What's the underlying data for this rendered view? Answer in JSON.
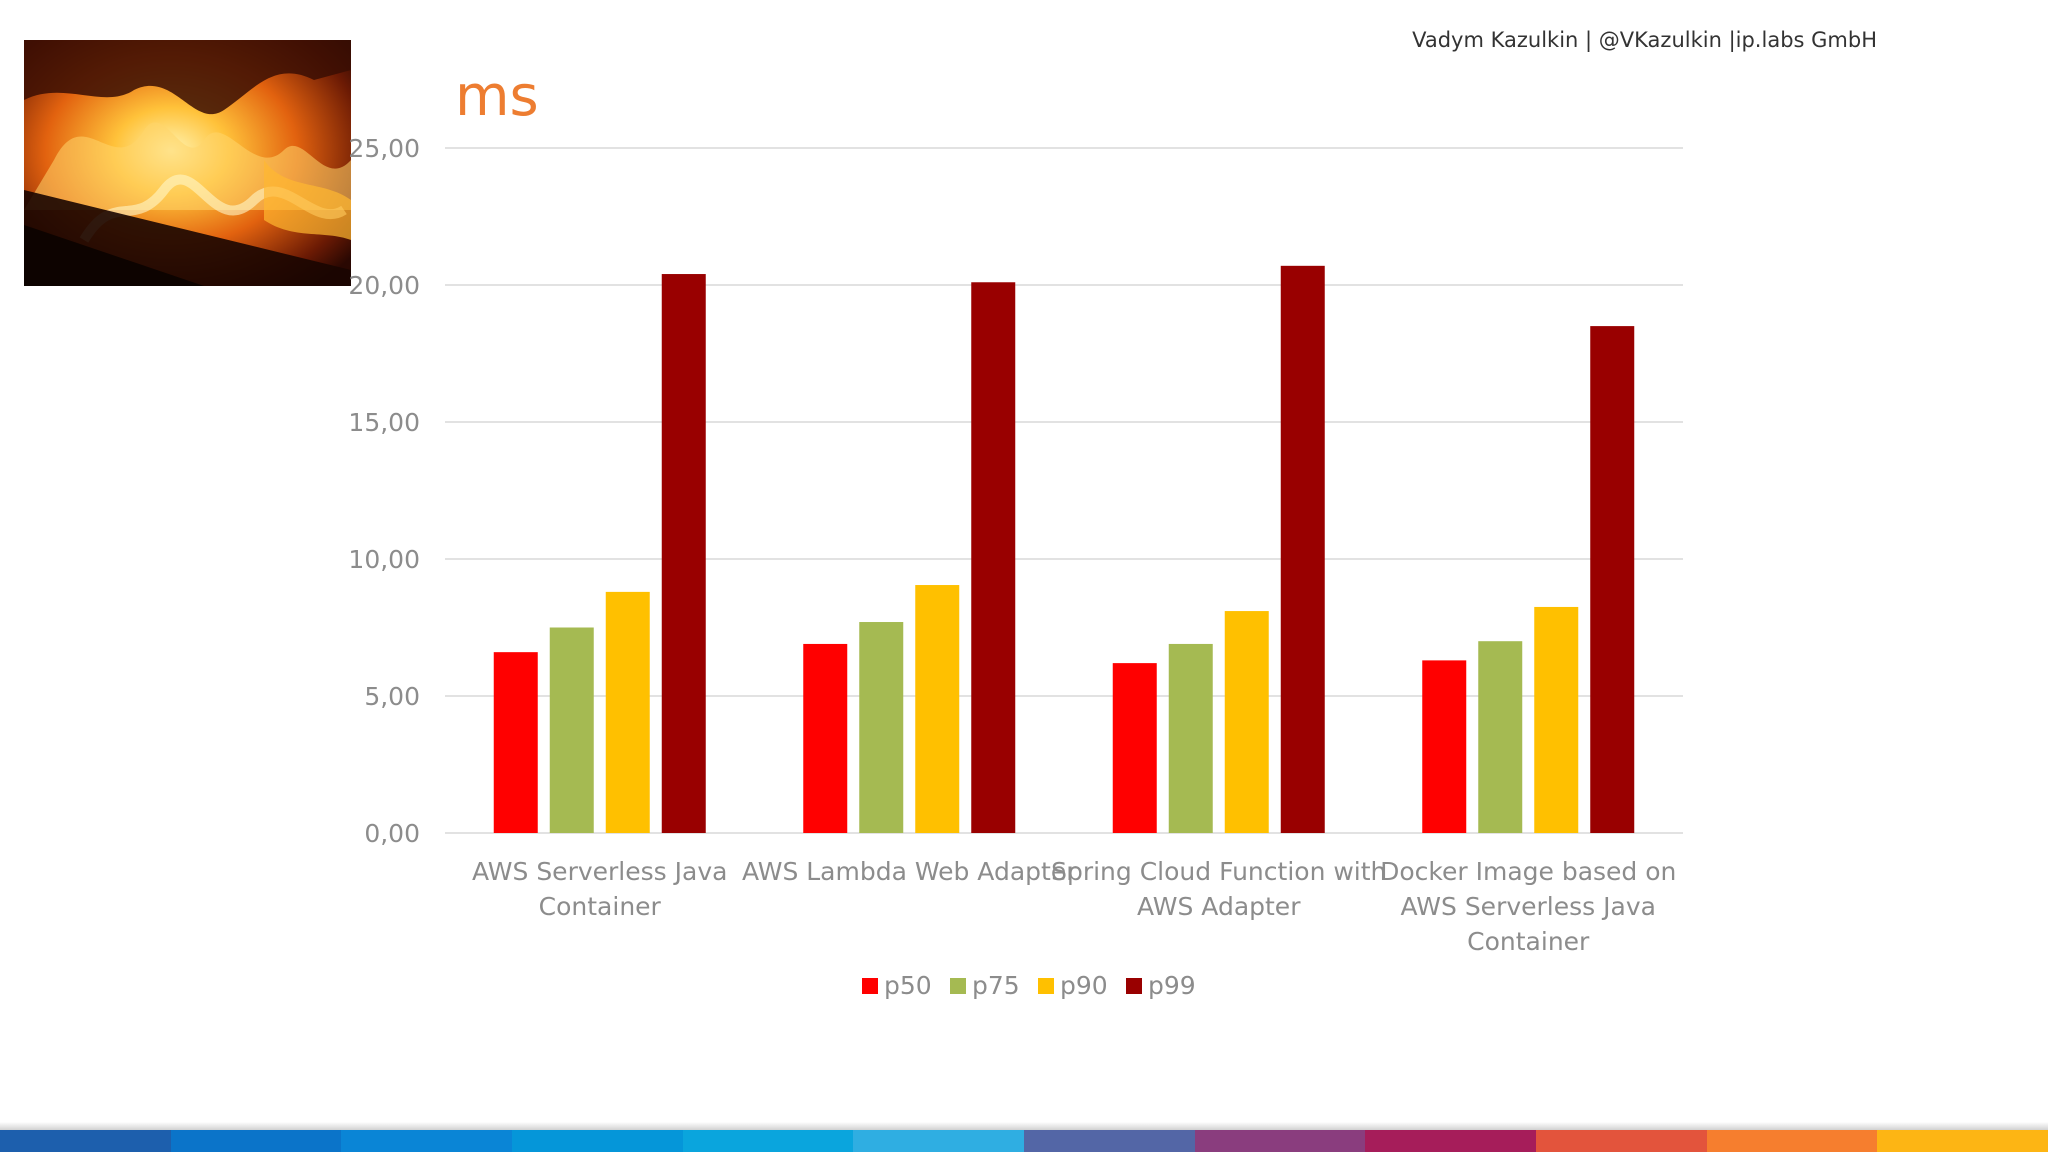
{
  "header": {
    "author_line": "Vadym Kazulkin | @VKazulkin |ip.labs GmbH"
  },
  "photo": {
    "icon": "fire-photo",
    "alt": "fire in fireplace"
  },
  "colors": {
    "title": "#ED7D31",
    "axis_text": "#8C8C8C",
    "grid": "#D9D9D9",
    "series": [
      "#FF0000",
      "#A5BA52",
      "#FFC000",
      "#990000"
    ],
    "bottom_bar": [
      "#1D5FAD",
      "#0B74C9",
      "#0A85D6",
      "#0596D9",
      "#0AA5DD",
      "#2FAEE2",
      "#5366A6",
      "#8A3D7E",
      "#A61D5A",
      "#E3543C",
      "#F67E2E",
      "#FDB514"
    ]
  },
  "chart_data": {
    "type": "bar",
    "title": "ms",
    "xlabel": "",
    "ylabel": "",
    "ylim": [
      0,
      25
    ],
    "yticks": [
      0,
      5,
      10,
      15,
      20,
      25
    ],
    "ytick_labels": [
      "0,00",
      "5,00",
      "10,00",
      "15,00",
      "20,00",
      "25,00"
    ],
    "grid": true,
    "legend_position": "bottom",
    "categories": [
      [
        "AWS Serverless Java",
        "Container"
      ],
      [
        "AWS Lambda Web Adapter"
      ],
      [
        "Spring Cloud Function with",
        "AWS Adapter"
      ],
      [
        "Docker Image based on",
        "AWS Serverless Java",
        "Container"
      ]
    ],
    "series": [
      {
        "name": "p50",
        "values": [
          6.6,
          6.9,
          6.2,
          6.3
        ]
      },
      {
        "name": "p75",
        "values": [
          7.5,
          7.7,
          6.9,
          7.0
        ]
      },
      {
        "name": "p90",
        "values": [
          8.8,
          9.05,
          8.1,
          8.25
        ]
      },
      {
        "name": "p99",
        "values": [
          20.4,
          20.1,
          20.7,
          18.5
        ]
      }
    ]
  }
}
